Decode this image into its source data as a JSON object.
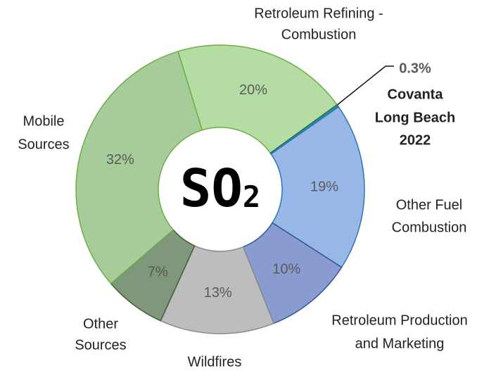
{
  "chart_data": {
    "type": "donut",
    "center_label": {
      "text": "SO",
      "subscript": "2"
    },
    "categories": [
      [
        "Retroleum Refining -",
        "Combustion"
      ],
      [
        "Covanta",
        "Long Beach",
        "2022"
      ],
      [
        "Other Fuel",
        "Combustion"
      ],
      [
        "Retroleum Production",
        "and Marketing"
      ],
      [
        "Wildfires"
      ],
      [
        "Other",
        "Sources"
      ],
      [
        "Mobile",
        "Sources"
      ]
    ],
    "values": [
      20,
      0.3,
      19,
      10,
      13,
      7,
      32
    ],
    "value_labels": [
      "20%",
      "0.3%",
      "19%",
      "10%",
      "13%",
      "7%",
      "32%"
    ],
    "colors": [
      "#b5dca3",
      "#2f8f84",
      "#97b8e6",
      "#8a9bd0",
      "#bdbdbd",
      "#7f977a",
      "#a6cc9a"
    ],
    "edge_colors": [
      "#70ad47",
      "#1f6f6a",
      "#2e75b6",
      "#2f5597",
      "#8c8c8c",
      "#3f5f35",
      "#70ad47"
    ]
  }
}
